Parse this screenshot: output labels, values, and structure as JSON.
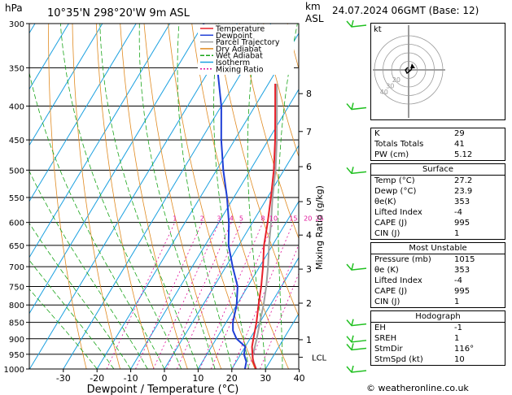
{
  "header": {
    "pressure_unit": "hPa",
    "location": "10°35'N 298°20'W 9m ASL",
    "height_unit_top": "km",
    "height_unit_bottom": "ASL",
    "datetime": "24.07.2024 06GMT (Base: 12)"
  },
  "legend": [
    "Temperature",
    "Dewpoint",
    "Parcel Trajectory",
    "Dry Adiabat",
    "Wet Adiabat",
    "Isotherm",
    "Mixing Ratio"
  ],
  "colors": {
    "temperature": "#e8202a",
    "dewpoint": "#1f3fd6",
    "parcel": "#a0a0a0",
    "dry_adiabat": "#e08a20",
    "wet_adiabat": "#1aa51a",
    "isotherm": "#1aa0e0",
    "mixing_ratio": "#e0109a",
    "wind": "#20c020"
  },
  "chart_data": {
    "type": "skew-t",
    "xlabel": "Dewpoint / Temperature (°C)",
    "ylabel_left": "hPa",
    "ylabel_right": "Mixing Ratio (g/kg)",
    "pressure_levels": [
      300,
      350,
      400,
      450,
      500,
      550,
      600,
      650,
      700,
      750,
      800,
      850,
      900,
      950,
      1000
    ],
    "temperature_ticks": [
      -30,
      -20,
      -10,
      0,
      10,
      20,
      30,
      40
    ],
    "height_km_ticks": [
      {
        "km": "1",
        "p": 903
      },
      {
        "km": "2",
        "p": 795
      },
      {
        "km": "3",
        "p": 706
      },
      {
        "km": "4",
        "p": 627
      },
      {
        "km": "5",
        "p": 558
      },
      {
        "km": "6",
        "p": 494
      },
      {
        "km": "7",
        "p": 437
      },
      {
        "km": "8",
        "p": 383
      }
    ],
    "lcl_label": "LCL",
    "lcl_pressure": 960,
    "mixing_ratio_labels": [
      "1",
      "2",
      "3",
      "4",
      "5",
      "8",
      "10",
      "15",
      "20",
      "25"
    ],
    "mixing_ratio_label_pressure": 600,
    "temperature_profile": [
      [
        1000,
        27.2
      ],
      [
        975,
        25
      ],
      [
        950,
        23.5
      ],
      [
        925,
        22
      ],
      [
        900,
        21
      ],
      [
        850,
        19
      ],
      [
        800,
        16.5
      ],
      [
        750,
        14
      ],
      [
        700,
        11
      ],
      [
        650,
        7.5
      ],
      [
        600,
        4.5
      ],
      [
        550,
        1
      ],
      [
        500,
        -3
      ],
      [
        450,
        -8
      ],
      [
        400,
        -14
      ],
      [
        370,
        -18
      ]
    ],
    "dewpoint_profile": [
      [
        1000,
        23.9
      ],
      [
        975,
        23
      ],
      [
        950,
        21
      ],
      [
        925,
        20
      ],
      [
        900,
        16
      ],
      [
        875,
        13.5
      ],
      [
        850,
        12
      ],
      [
        800,
        10
      ],
      [
        750,
        7
      ],
      [
        700,
        2
      ],
      [
        650,
        -3
      ],
      [
        600,
        -7
      ],
      [
        550,
        -12
      ],
      [
        500,
        -18
      ],
      [
        450,
        -24
      ],
      [
        400,
        -30
      ],
      [
        350,
        -38
      ],
      [
        300,
        -50
      ]
    ],
    "parcel_profile": [
      [
        1000,
        27.2
      ],
      [
        960,
        24
      ],
      [
        900,
        22
      ],
      [
        850,
        20
      ],
      [
        800,
        18
      ],
      [
        750,
        15.5
      ],
      [
        700,
        12.5
      ],
      [
        650,
        9
      ],
      [
        600,
        5.5
      ],
      [
        550,
        1.5
      ],
      [
        500,
        -2.5
      ],
      [
        450,
        -7.5
      ],
      [
        400,
        -13.5
      ],
      [
        370,
        -17.5
      ]
    ],
    "wind_barb_pressures": [
      300,
      400,
      500,
      700,
      850,
      900,
      925,
      1000
    ]
  },
  "indices": {
    "basic": [
      {
        "label": "K",
        "value": "29"
      },
      {
        "label": "Totals Totals",
        "value": "41"
      },
      {
        "label": "PW (cm)",
        "value": "5.12"
      }
    ],
    "surface_title": "Surface",
    "surface": [
      {
        "label": "Temp (°C)",
        "value": "27.2"
      },
      {
        "label": "Dewp (°C)",
        "value": "23.9"
      },
      {
        "label": "θe(K)",
        "value": "353"
      },
      {
        "label": "Lifted Index",
        "value": "-4"
      },
      {
        "label": "CAPE (J)",
        "value": "995"
      },
      {
        "label": "CIN (J)",
        "value": "1"
      }
    ],
    "unstable_title": "Most Unstable",
    "unstable": [
      {
        "label": "Pressure (mb)",
        "value": "1015"
      },
      {
        "label": "θe (K)",
        "value": "353"
      },
      {
        "label": "Lifted Index",
        "value": "-4"
      },
      {
        "label": "CAPE (J)",
        "value": "995"
      },
      {
        "label": "CIN (J)",
        "value": "1"
      }
    ],
    "hodograph_title": "Hodograph",
    "hodograph": [
      {
        "label": "EH",
        "value": "-1"
      },
      {
        "label": "SREH",
        "value": "1"
      },
      {
        "label": "StmDir",
        "value": "116°"
      },
      {
        "label": "StmSpd (kt)",
        "value": "10"
      }
    ]
  },
  "hodograph_panel": {
    "label": "kt",
    "ring_labels": [
      "20",
      "30",
      "40"
    ]
  },
  "copyright": "© weatheronline.co.uk"
}
